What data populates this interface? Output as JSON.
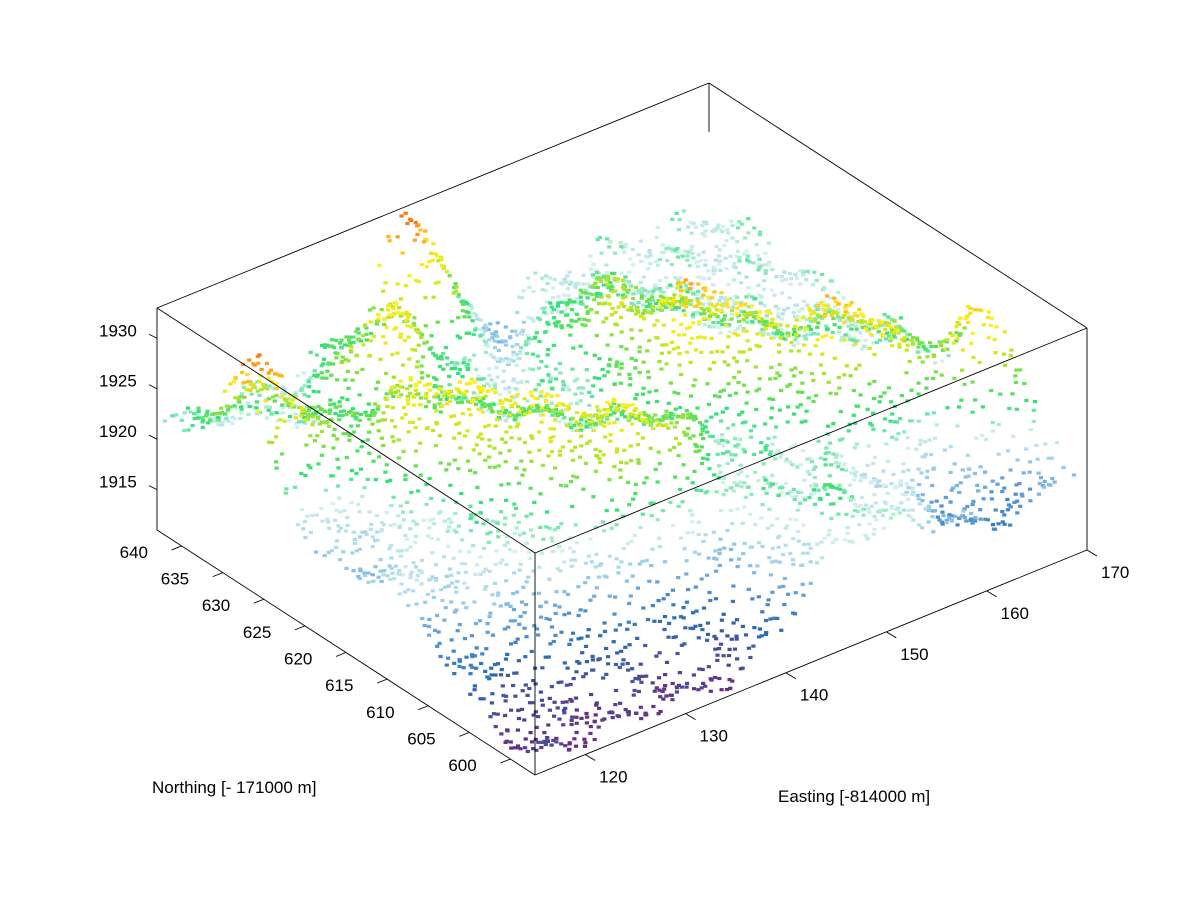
{
  "chart_data": {
    "type": "scatter",
    "projection": "3d",
    "title": "",
    "xlabel": "Easting [-814000 m]",
    "ylabel": "Northing [- 171000 m]",
    "zlabel": "",
    "xlim": [
      115,
      170
    ],
    "ylim": [
      597,
      643
    ],
    "zlim": [
      1911,
      1933
    ],
    "x_ticks": [
      120,
      130,
      140,
      150,
      160,
      170
    ],
    "y_ticks": [
      600,
      605,
      610,
      615,
      620,
      625,
      630,
      635,
      640
    ],
    "z_ticks": [
      1915,
      1920,
      1925,
      1930
    ],
    "grid": false,
    "legend": "none",
    "colormap": [
      "#6e2a7d",
      "#4a4f9a",
      "#2a6fb5",
      "#5b9bd5",
      "#9fd3e8",
      "#d6f0f0",
      "#2fe07a",
      "#6fe24a",
      "#cfe61c",
      "#fff020",
      "#ffb020",
      "#f07020"
    ],
    "colormap_range": [
      1911,
      1933
    ],
    "surface": {
      "description_units": "elevation in m",
      "base": 1921,
      "ridges": [
        {
          "x": 117,
          "y": 633,
          "height": 1932,
          "spread": 3.5
        },
        {
          "x": 127,
          "y": 626,
          "height": 1928,
          "spread": 4
        },
        {
          "x": 133,
          "y": 620,
          "height": 1927,
          "spread": 4
        },
        {
          "x": 135,
          "y": 612,
          "height": 1926,
          "spread": 4
        },
        {
          "x": 141,
          "y": 614,
          "height": 1926,
          "spread": 3.5
        },
        {
          "x": 132,
          "y": 636,
          "height": 1929,
          "spread": 3
        },
        {
          "x": 140,
          "y": 642,
          "height": 1934,
          "spread": 3
        },
        {
          "x": 152,
          "y": 622,
          "height": 1930,
          "spread": 4
        },
        {
          "x": 160,
          "y": 614,
          "height": 1930,
          "spread": 4
        },
        {
          "x": 168,
          "y": 607,
          "height": 1931,
          "spread": 3
        },
        {
          "x": 146,
          "y": 602,
          "height": 1924,
          "spread": 4
        },
        {
          "x": 124,
          "y": 612,
          "height": 1923,
          "spread": 4
        },
        {
          "x": 150,
          "y": 632,
          "height": 1926,
          "spread": 4
        }
      ],
      "valleys": [
        {
          "x": 118,
          "y": 600,
          "depth": 9,
          "spread": 8
        },
        {
          "x": 135,
          "y": 598,
          "depth": 8,
          "spread": 7
        },
        {
          "x": 145,
          "y": 640,
          "depth": 4,
          "spread": 4
        },
        {
          "x": 163,
          "y": 600,
          "depth": 5,
          "spread": 5
        },
        {
          "x": 115,
          "y": 625,
          "depth": 3,
          "spread": 5
        }
      ]
    }
  }
}
